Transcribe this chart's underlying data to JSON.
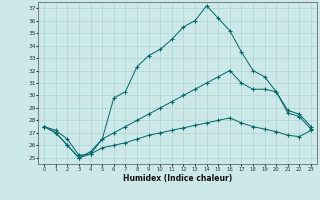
{
  "xlabel": "Humidex (Indice chaleur)",
  "background_color": "#cce8e8",
  "grid_color": "#b0d8d8",
  "line_color": "#006868",
  "xlim": [
    -0.5,
    23.5
  ],
  "ylim": [
    24.5,
    37.5
  ],
  "xticks": [
    0,
    1,
    2,
    3,
    4,
    5,
    6,
    7,
    8,
    9,
    10,
    11,
    12,
    13,
    14,
    15,
    16,
    17,
    18,
    19,
    20,
    21,
    22,
    23
  ],
  "yticks": [
    25,
    26,
    27,
    28,
    29,
    30,
    31,
    32,
    33,
    34,
    35,
    36,
    37
  ],
  "line1_x": [
    0,
    1,
    2,
    3,
    4,
    5,
    6,
    7,
    8,
    9,
    10,
    11,
    12,
    13,
    14,
    15,
    16,
    17,
    18,
    19,
    20,
    21,
    22,
    23
  ],
  "line1_y": [
    27.5,
    27.2,
    26.5,
    25.2,
    25.3,
    26.5,
    29.8,
    30.3,
    32.3,
    33.2,
    33.7,
    34.5,
    35.5,
    36.0,
    37.2,
    36.2,
    35.2,
    33.5,
    32.0,
    31.5,
    30.3,
    28.6,
    28.3,
    27.3
  ],
  "line2_x": [
    0,
    1,
    2,
    3,
    4,
    5,
    6,
    7,
    8,
    9,
    10,
    11,
    12,
    13,
    14,
    15,
    16,
    17,
    18,
    19,
    20,
    21,
    22,
    23
  ],
  "line2_y": [
    27.5,
    27.0,
    26.0,
    25.0,
    25.5,
    26.5,
    27.0,
    27.5,
    28.0,
    28.5,
    29.0,
    29.5,
    30.0,
    30.5,
    31.0,
    31.5,
    32.0,
    31.0,
    30.5,
    30.5,
    30.3,
    28.8,
    28.5,
    27.5
  ],
  "line3_x": [
    0,
    1,
    2,
    3,
    4,
    5,
    6,
    7,
    8,
    9,
    10,
    11,
    12,
    13,
    14,
    15,
    16,
    17,
    18,
    19,
    20,
    21,
    22,
    23
  ],
  "line3_y": [
    27.5,
    27.0,
    26.0,
    25.0,
    25.3,
    25.8,
    26.0,
    26.2,
    26.5,
    26.8,
    27.0,
    27.2,
    27.4,
    27.6,
    27.8,
    28.0,
    28.2,
    27.8,
    27.5,
    27.3,
    27.1,
    26.8,
    26.7,
    27.2
  ]
}
